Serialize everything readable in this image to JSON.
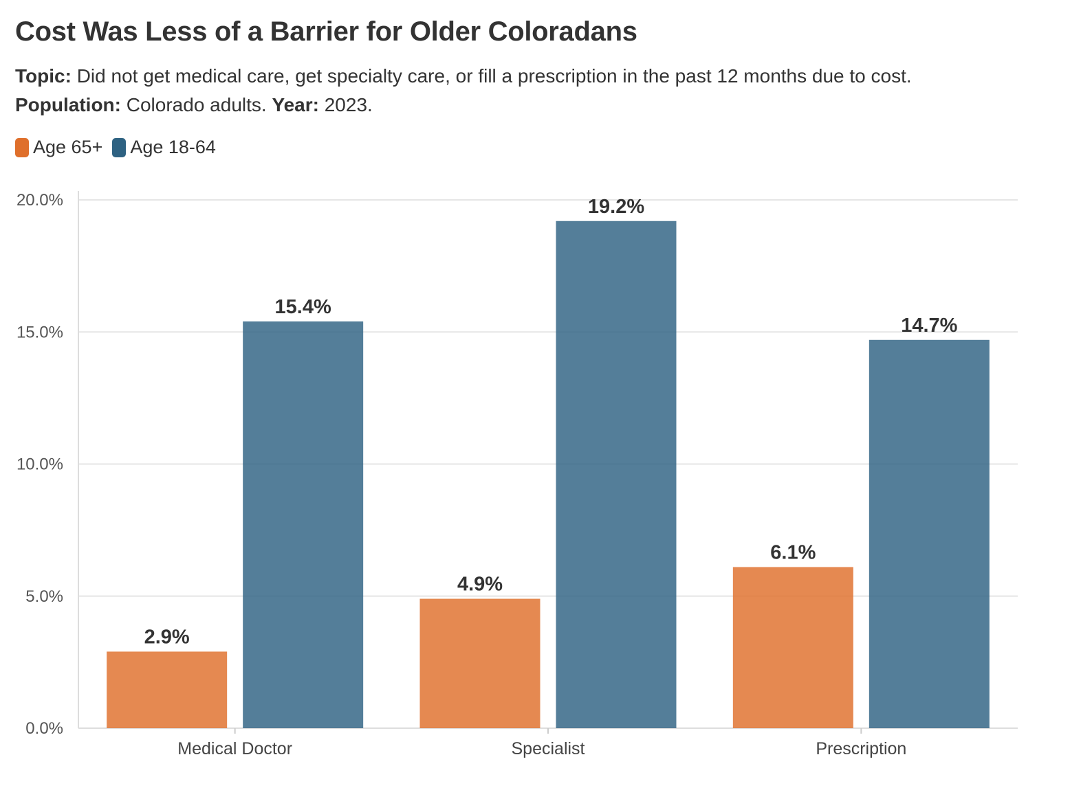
{
  "header": {
    "title": "Cost Was Less of a Barrier for Older Coloradans",
    "topic_label": "Topic:",
    "topic_text": "Did not get medical care, get specialty care, or fill a prescription in the past 12 months due to cost.",
    "population_label": "Population:",
    "population_text": "Colorado adults.",
    "year_label": "Year:",
    "year_text": "2023."
  },
  "legend": [
    {
      "label": "Age 65+",
      "color": "#df6f2b"
    },
    {
      "label": "Age 18-64",
      "color": "#2e6282"
    }
  ],
  "chart_data": {
    "type": "bar",
    "title": "Cost Was Less of a Barrier for Older Coloradans",
    "categories": [
      "Medical Doctor",
      "Specialist",
      "Prescription"
    ],
    "series": [
      {
        "name": "Age 65+",
        "color": "#df6f2b",
        "values": [
          2.9,
          4.9,
          6.1
        ],
        "labels": [
          "2.9%",
          "4.9%",
          "6.1%"
        ]
      },
      {
        "name": "Age 18-64",
        "color": "#2e6282",
        "values": [
          15.4,
          19.2,
          14.7
        ],
        "labels": [
          "15.4%",
          "19.2%",
          "14.7%"
        ]
      }
    ],
    "ylim": [
      0,
      20
    ],
    "yticks": [
      0,
      5,
      10,
      15,
      20
    ],
    "ytick_labels": [
      "0.0%",
      "5.0%",
      "10.0%",
      "15.0%",
      "20.0%"
    ],
    "grid": true,
    "legend_position": "top-left"
  }
}
